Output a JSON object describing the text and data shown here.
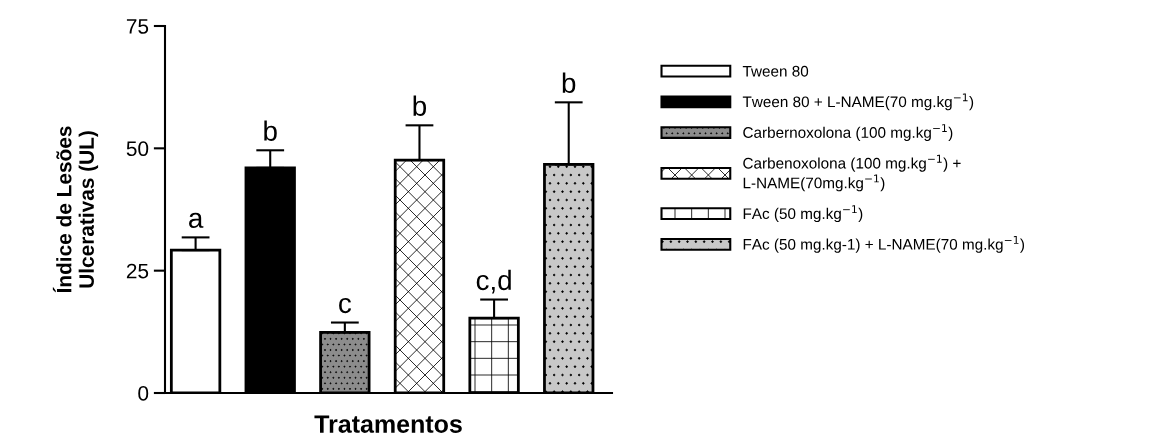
{
  "chart_data": {
    "type": "bar",
    "xlabel": "Tratamentos",
    "ylabel": "Índice de Lesões\nUlcerativas (UL)",
    "categories": [
      null,
      null,
      null,
      null,
      null,
      null
    ],
    "series": [
      {
        "name": "Tween 80",
        "color": "#ffffff",
        "values": [
          29.2,
          null,
          null,
          null,
          null,
          null
        ],
        "errors": [
          2.6,
          null,
          null,
          null,
          null,
          null
        ],
        "value_labels": [
          "a",
          null,
          null,
          null,
          null,
          null
        ]
      },
      {
        "name": "Tween 80 + L-NAME(70 mg.kg$^{−1}$)",
        "color": "#000000",
        "values": [
          null,
          46.0,
          null,
          null,
          null,
          null
        ],
        "errors": [
          null,
          3.6,
          null,
          null,
          null,
          null
        ],
        "value_labels": [
          null,
          "b",
          null,
          null,
          null,
          null
        ]
      },
      {
        "name": "Carbernoxolona (100 mg.kg$^{−1}$)",
        "color": "#8c8c8c",
        "values": [
          null,
          null,
          12.4,
          null,
          null,
          null
        ],
        "errors": [
          null,
          null,
          2.0,
          null,
          null,
          null
        ],
        "value_labels": [
          null,
          null,
          "c",
          null,
          null,
          null
        ]
      },
      {
        "name": "Carbenoxolona (100 mg.kg$^{−1}$) +\nL-NAME(70mg.kg$^{−1}$)",
        "color": "#ffffff",
        "values": [
          null,
          null,
          null,
          47.6,
          null,
          null
        ],
        "errors": [
          null,
          null,
          null,
          7.1,
          null,
          null
        ],
        "value_labels": [
          null,
          null,
          null,
          "b",
          null,
          null
        ]
      },
      {
        "name": "FAc (50 mg.kg$^{−1}$)",
        "color": "#ffffff",
        "values": [
          null,
          null,
          null,
          null,
          15.3,
          null
        ],
        "errors": [
          null,
          null,
          null,
          null,
          3.8,
          null
        ],
        "value_labels": [
          null,
          null,
          null,
          null,
          "c,d",
          null
        ]
      },
      {
        "name": "FAc (50 mg.kg-1) + L-NAME(70 mg.kg$^{−1}$)",
        "color": "#c8c8c8",
        "values": [
          null,
          null,
          null,
          null,
          null,
          46.7
        ],
        "errors": [
          null,
          null,
          null,
          null,
          null,
          12.7
        ],
        "value_labels": [
          null,
          null,
          null,
          null,
          null,
          "b"
        ]
      }
    ],
    "ylim": [
      0,
      75
    ],
    "yticks": [
      0,
      25,
      50,
      75
    ],
    "grid": false,
    "legend": "right"
  }
}
